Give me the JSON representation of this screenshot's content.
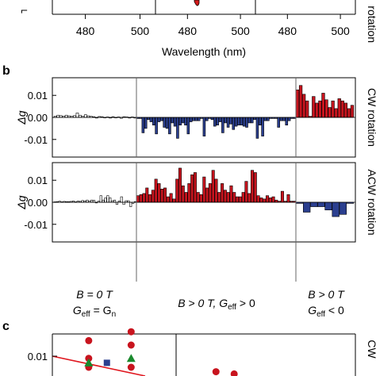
{
  "panel_labels": {
    "b": "b",
    "c": "c"
  },
  "top_axis": {
    "xlabel": "Wavelength (nm)",
    "groups": [
      {
        "ticks": [
          "480",
          "500"
        ]
      },
      {
        "ticks": [
          "480",
          "500"
        ]
      },
      {
        "ticks": [
          "480",
          "500"
        ]
      }
    ],
    "right_label": "rotation"
  },
  "conditions": {
    "left": {
      "line1": "B = 0 T",
      "line2": "G",
      "line2_sub": "eff",
      "line2_rest": " = G",
      "line2_sub2": "n"
    },
    "middle": {
      "line1_a": "B > 0 T, G",
      "line1_sub": "eff",
      "line1_rest": " > 0"
    },
    "right": {
      "line1": "B > 0 T",
      "line2": "G",
      "line2_sub": "eff",
      "line2_rest": " < 0"
    }
  },
  "colors": {
    "blue": "#2b3f8f",
    "red": "#c8141e",
    "white_bar": "#ffffff",
    "green": "#1a8a2e",
    "fit_line": "#e0161e"
  },
  "chart_data": [
    {
      "type": "bar",
      "panel": "b-top",
      "ylabel": "Δg",
      "right_label": "CW rotation",
      "ylim": [
        -0.018,
        0.018
      ],
      "yticks": [
        "0.01",
        "0.00",
        "-0.01"
      ],
      "segments": [
        {
          "name": "B = 0 T",
          "color": "white",
          "values": [
            0.0005,
            0.001,
            0.0008,
            0.0005,
            0.001,
            0.0007,
            0.0005,
            0.0008,
            0.002,
            0.001,
            0.0005,
            0.0012,
            0.0007,
            0.0005,
            0.0003,
            -0.0003,
            0.0004,
            0.0003,
            -0.0002,
            0.0002,
            -0.0003,
            0.0003,
            -0.0002,
            0.0002,
            -0.0004,
            0.0003,
            0.0002,
            -0.0003,
            0.0002,
            -0.0003
          ]
        },
        {
          "name": "B > 0 T, Geff > 0",
          "color": "blue",
          "values": [
            -0.0005,
            -0.0005,
            -0.007,
            -0.005,
            -0.001,
            -0.002,
            -0.0035,
            -0.0075,
            -0.002,
            -0.0015,
            -0.0045,
            -0.005,
            -0.0075,
            -0.0025,
            -0.004,
            -0.0095,
            -0.0035,
            -0.0025,
            -0.0035,
            -0.0075,
            -0.002,
            -0.0015,
            -0.0015,
            -0.0015,
            -0.0005,
            -0.0085,
            -0.0015,
            -0.0005,
            -0.001,
            -0.004,
            -0.0035,
            -0.002,
            -0.007,
            -0.0025,
            -0.0045,
            -0.003,
            -0.0055,
            -0.004,
            -0.0035,
            -0.0035,
            -0.004,
            -0.0045,
            -0.0025,
            -0.0025,
            -0.001,
            -0.0095,
            -0.0035,
            -0.0085,
            -0.0015,
            -0.0015,
            -0.0005,
            -0.0005,
            -0.0005,
            -0.0045,
            -0.0015,
            -0.0015,
            -0.0035,
            -0.0015,
            -0.0005,
            -0.0005
          ]
        },
        {
          "name": "B > 0 T, Geff < 0",
          "color": "red",
          "values": [
            0.0125,
            0.0145,
            0.0105,
            0.0075,
            0.0005,
            0.0095,
            0.0065,
            0.0075,
            0.011,
            0.008,
            0.0045,
            0.0075,
            0.004,
            0.0085,
            0.0075,
            0.0065,
            0.004,
            0.0055
          ]
        }
      ]
    },
    {
      "type": "bar",
      "panel": "b-bottom",
      "ylabel": "Δg",
      "right_label": "ACW rotation",
      "ylim": [
        -0.018,
        0.018
      ],
      "yticks": [
        "0.01",
        "0.00",
        "-0.01"
      ],
      "segments": [
        {
          "name": "B = 0 T",
          "color": "white",
          "values": [
            0.0002,
            0.0003,
            0.0005,
            0.0002,
            0.0004,
            0.0003,
            0.0003,
            0.0004,
            0.0006,
            0.0002,
            0.0006,
            0.0004,
            0.0008,
            0.0006,
            0.001,
            0.0005,
            0.001,
            0.0009,
            -0.0003,
            0.0005,
            0.003,
            0.001,
            0.002,
            0.003,
            0.002,
            0.0007,
            0.001,
            -0.001,
            0.0006,
            0.0025,
            -0.001,
            0.0007,
            0.0007,
            -0.002,
            -0.0005,
            0.0003
          ]
        },
        {
          "name": "B > 0 T, Geff > 0",
          "color": "red",
          "values": [
            0.003,
            0.0035,
            0.004,
            0.0065,
            0.0035,
            0.0055,
            0.0105,
            0.0085,
            0.006,
            0.0065,
            0.0025,
            0.004,
            0.0015,
            0.0105,
            0.0155,
            0.0075,
            0.0045,
            0.0085,
            0.0125,
            0.0135,
            0.0045,
            0.0035,
            0.0115,
            0.0065,
            0.0085,
            0.0145,
            0.0105,
            0.0045,
            0.0085,
            0.0055,
            0.0045,
            0.0075,
            0.0045,
            0.0025,
            0.0025,
            0.0045,
            0.0095,
            0.004,
            0.0145,
            0.0135,
            0.003,
            0.002,
            0.0015,
            0.003,
            0.002,
            0.0025,
            0.001,
            0.0005,
            0.005,
            0.0005,
            0.0035,
            0.0005,
            0.0005
          ]
        },
        {
          "name": "B > 0 T, Geff < 0",
          "color": "blue",
          "values": [
            -0.0005,
            -0.0045,
            -0.002,
            -0.002,
            -0.0035,
            -0.0065,
            -0.0055,
            -0.0005
          ]
        }
      ]
    },
    {
      "type": "scatter",
      "panel": "c",
      "yticks": [
        "0.01"
      ],
      "right_label": "CW",
      "points": [
        {
          "color": "red",
          "shape": "circle",
          "px": 0.12,
          "y": 0.0135
        },
        {
          "color": "red",
          "shape": "circle",
          "px": 0.12,
          "y": 0.0095
        },
        {
          "color": "red",
          "shape": "circle",
          "px": 0.12,
          "y": 0.0075
        },
        {
          "color": "green",
          "shape": "triangle",
          "px": 0.12,
          "y": 0.0085
        },
        {
          "color": "blue",
          "shape": "square",
          "px": 0.18,
          "y": 0.0085
        },
        {
          "color": "red",
          "shape": "circle",
          "px": 0.26,
          "y": 0.0155
        },
        {
          "color": "red",
          "shape": "circle",
          "px": 0.26,
          "y": 0.0125
        },
        {
          "color": "green",
          "shape": "triangle",
          "px": 0.26,
          "y": 0.0095
        },
        {
          "color": "red",
          "shape": "circle",
          "px": 0.26,
          "y": 0.0075
        },
        {
          "color": "red",
          "shape": "circle",
          "px": 0.54,
          "y": 0.0065
        },
        {
          "color": "red",
          "shape": "circle",
          "px": 0.6,
          "y": 0.006
        }
      ]
    }
  ]
}
